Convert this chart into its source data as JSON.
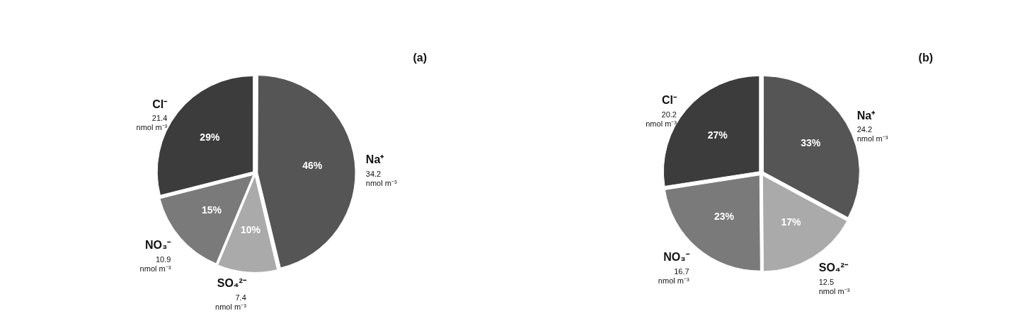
{
  "chart_data": [
    {
      "type": "pie",
      "title": "(a)",
      "categories": [
        "Na⁺",
        "SO₄²⁻",
        "NO₃⁻",
        "Cl⁻"
      ],
      "values": [
        34.2,
        7.4,
        10.9,
        21.4
      ],
      "colors": [
        "#555555",
        "#aaaaaa",
        "#7a7a7a",
        "#3c3c3c"
      ],
      "value_labels": [
        "34.2\nnmol m⁻³",
        "7.4\nnmol m⁻³",
        "10.9\nnmol m⁻³",
        "21.4\nnmol m⁻³"
      ],
      "annotations": [
        {
          "text": "46%",
          "x": "Na⁺"
        },
        {
          "text": "10%",
          "x": "SO₄²⁻"
        },
        {
          "text": "15%",
          "x": "NO₃⁻"
        },
        {
          "text": "29%",
          "x": "Cl⁻"
        }
      ]
    },
    {
      "type": "pie",
      "title": "(b)",
      "categories": [
        "Na⁺",
        "SO₄²⁻",
        "NO₃⁻",
        "Cl⁻"
      ],
      "values": [
        24.2,
        12.5,
        16.7,
        20.2
      ],
      "colors": [
        "#555555",
        "#aaaaaa",
        "#7a7a7a",
        "#3c3c3c"
      ],
      "value_labels": [
        "24.2\nnmol m⁻³",
        "12.5\nnmol m⁻³",
        "16.7\nnmol m⁻³",
        "20.2\nnmol m⁻³"
      ],
      "annotations": [
        {
          "text": "33%",
          "x": "Na⁺"
        },
        {
          "text": "17%",
          "x": "SO₄²⁻"
        },
        {
          "text": "23%",
          "x": "NO₃⁻"
        },
        {
          "text": "27%",
          "x": "Cl⁻"
        }
      ]
    }
  ]
}
